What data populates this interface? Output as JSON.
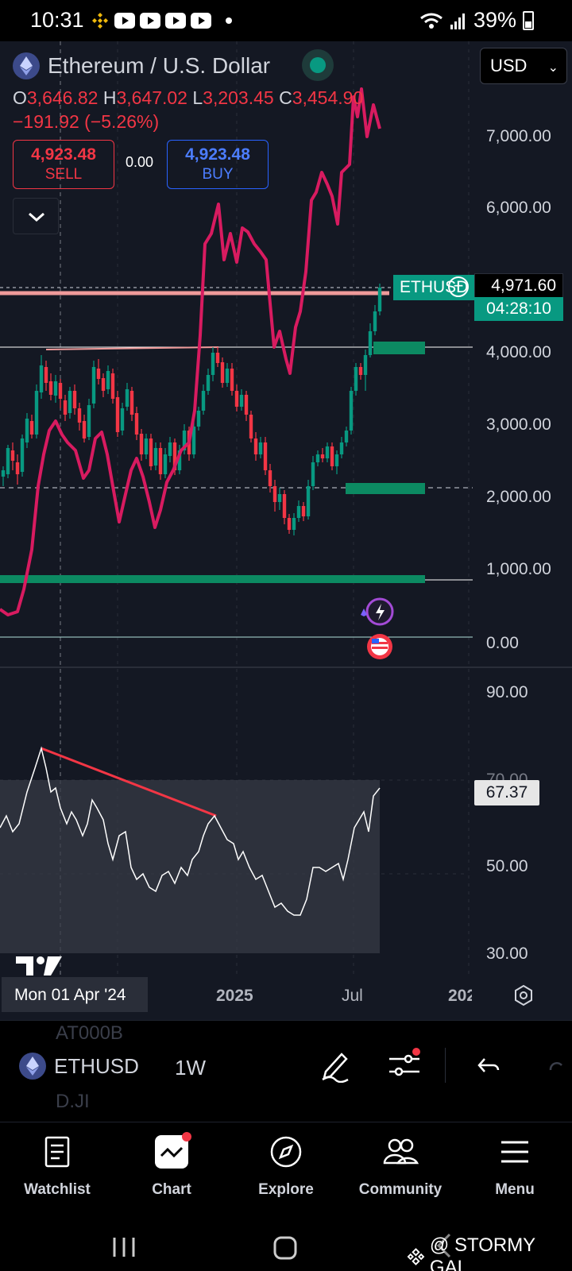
{
  "status_bar": {
    "time": "10:31",
    "battery": "39%",
    "icons": [
      "binance-icon",
      "youtube-icon",
      "youtube-icon",
      "youtube-icon",
      "youtube-icon",
      "dot",
      "wifi-icon",
      "signal-icon",
      "battery-icon"
    ]
  },
  "header": {
    "title": "Ethereum / U.S. Dollar",
    "currency": "USD",
    "ohlc": {
      "o_label": "O",
      "o": "3,646.82",
      "h_label": "H",
      "h": "3,647.02",
      "l_label": "L",
      "l": "3,203.45",
      "c_label": "C",
      "c": "3,454.90"
    },
    "change": "−191.92 (−5.26%)"
  },
  "trade": {
    "sell_price": "4,923.48",
    "sell_label": "SELL",
    "spread": "0.00",
    "buy_price": "4,923.48",
    "buy_label": "BUY"
  },
  "price_axis": {
    "labels": [
      "7,000.00",
      "6,000.00",
      "4,000.00",
      "3,000.00",
      "2,000.00",
      "1,000.00",
      "0.00"
    ],
    "current_price": "4,971.60",
    "countdown": "04:28:10",
    "symbol_tag": "ETHUSD"
  },
  "rsi_axis": {
    "labels": [
      "90.00",
      "70.00",
      "50.00",
      "30.00"
    ],
    "current": "67.37"
  },
  "time_axis": {
    "crosshair_date": "Mon 01 Apr '24",
    "labels": [
      "2025",
      "Jul",
      "202"
    ]
  },
  "colors": {
    "background": "#141823",
    "up": "#089981",
    "down": "#f23645",
    "overlay_line": "#d81b60",
    "buy": "#2962ff"
  },
  "chart_data": {
    "type": "candlestick",
    "symbol": "ETHUSD",
    "interval": "1W",
    "y_range": [
      0,
      7500
    ],
    "last_price": 4971.6,
    "rsi": {
      "value": 67.37,
      "range": [
        30,
        90
      ]
    }
  },
  "toolbar": {
    "ghost_top": "AT000B",
    "symbol": "ETHUSD",
    "interval": "1W",
    "ghost_bottom": "D.JI"
  },
  "bottom_nav": {
    "items": [
      {
        "label": "Watchlist",
        "icon": "watchlist-icon"
      },
      {
        "label": "Chart",
        "icon": "chart-icon"
      },
      {
        "label": "Explore",
        "icon": "compass-icon"
      },
      {
        "label": "Community",
        "icon": "community-icon"
      },
      {
        "label": "Menu",
        "icon": "menu-icon"
      }
    ]
  },
  "watermark": "@ STORMY GAL"
}
